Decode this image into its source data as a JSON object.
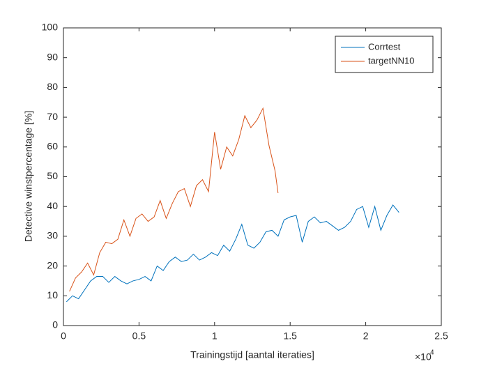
{
  "chart_data": {
    "type": "line",
    "xlabel": "Trainingstijd [aantal iteraties]",
    "ylabel": "Detective winstpercentage [%]",
    "x_multiplier": "×10",
    "x_multiplier_exponent": "4",
    "xlim": [
      0,
      2.5
    ],
    "xticks": [
      0,
      0.5,
      1,
      1.5,
      2,
      2.5
    ],
    "ylim": [
      0,
      100
    ],
    "yticks": [
      0,
      10,
      20,
      30,
      40,
      50,
      60,
      70,
      80,
      90,
      100
    ],
    "legend": "top-right",
    "series": [
      {
        "name": "Corrtest",
        "color": "#0072bd",
        "x": [
          0.02,
          0.06,
          0.1,
          0.14,
          0.18,
          0.22,
          0.26,
          0.3,
          0.34,
          0.38,
          0.42,
          0.46,
          0.5,
          0.54,
          0.58,
          0.62,
          0.66,
          0.7,
          0.74,
          0.78,
          0.82,
          0.86,
          0.9,
          0.94,
          0.98,
          1.02,
          1.06,
          1.1,
          1.14,
          1.18,
          1.22,
          1.26,
          1.3,
          1.34,
          1.38,
          1.42,
          1.46,
          1.5,
          1.54,
          1.58,
          1.62,
          1.66,
          1.7,
          1.74,
          1.78,
          1.82,
          1.86,
          1.9,
          1.94,
          1.98,
          2.02,
          2.06,
          2.1,
          2.14,
          2.18,
          2.22
        ],
        "values": [
          8,
          10,
          9,
          12,
          15,
          16.5,
          16.5,
          14.5,
          16.5,
          15,
          14,
          15,
          15.5,
          16.5,
          15,
          20,
          18.5,
          21.5,
          23,
          21.5,
          22,
          24,
          22,
          23,
          24.5,
          23.5,
          27,
          25,
          29,
          34,
          27,
          26,
          28,
          31.5,
          32,
          30,
          35.5,
          36.5,
          37,
          28,
          35,
          36.5,
          34.5,
          35,
          33.5,
          32,
          33,
          35,
          39,
          40,
          33,
          40,
          32,
          37,
          40.5,
          38
        ]
      },
      {
        "name": "targetNN10",
        "color": "#d95319",
        "x": [
          0.04,
          0.08,
          0.12,
          0.16,
          0.2,
          0.24,
          0.28,
          0.32,
          0.36,
          0.4,
          0.44,
          0.48,
          0.52,
          0.56,
          0.6,
          0.64,
          0.68,
          0.72,
          0.76,
          0.8,
          0.84,
          0.88,
          0.92,
          0.96,
          1.0,
          1.04,
          1.08,
          1.12,
          1.16,
          1.2,
          1.24,
          1.28,
          1.32,
          1.36,
          1.4,
          1.42
        ],
        "values": [
          11.5,
          16,
          18,
          21,
          17,
          24.5,
          28,
          27.5,
          29,
          35.5,
          30,
          36,
          37.5,
          35,
          36.5,
          42,
          36,
          41,
          45,
          46,
          40,
          47,
          49,
          45,
          65,
          52.5,
          60,
          57,
          62.5,
          70.5,
          66.5,
          69,
          73,
          60.5,
          52,
          44.5
        ]
      }
    ]
  }
}
